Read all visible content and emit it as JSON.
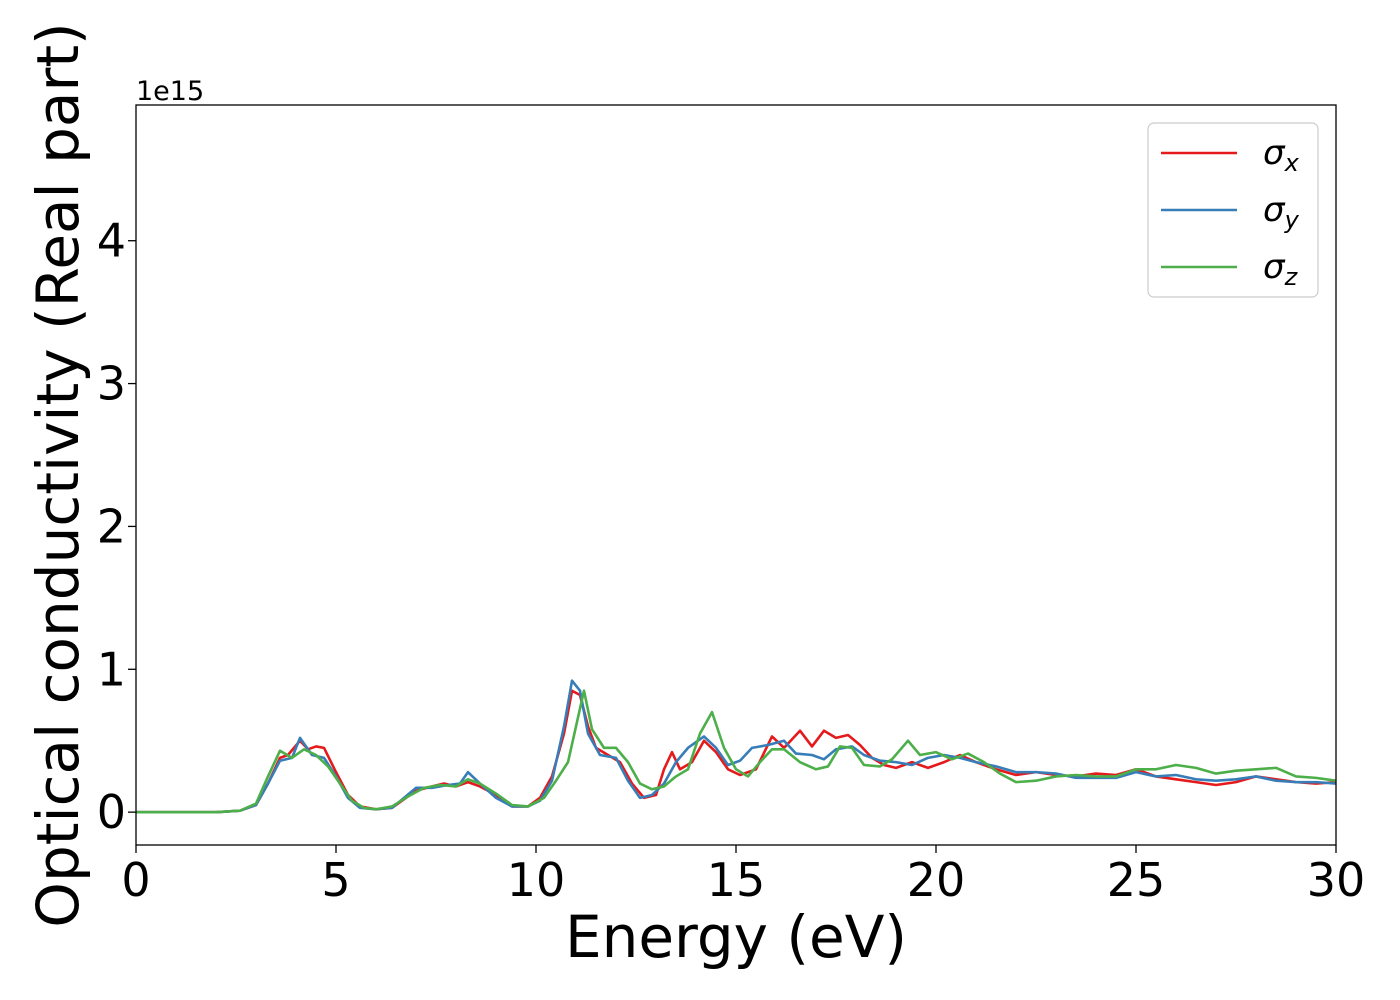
{
  "chart_data": {
    "type": "line",
    "xlabel": "Energy (eV)",
    "ylabel": "Optical conductivity (Real part)",
    "y_offset_label": "1e15",
    "xlim": [
      0,
      30
    ],
    "ylim": [
      -0.23,
      4.95
    ],
    "x_ticks": [
      0,
      5,
      10,
      15,
      20,
      25,
      30
    ],
    "y_ticks": [
      0,
      1,
      2,
      3,
      4
    ],
    "grid": false,
    "legend_position": "top-right",
    "series": [
      {
        "name": "σ_x",
        "legend_symbol": "σ",
        "legend_subscript": "x",
        "color": "#e41a1c",
        "points": [
          [
            0,
            0
          ],
          [
            2,
            0
          ],
          [
            2.6,
            0.01
          ],
          [
            3.0,
            0.05
          ],
          [
            3.3,
            0.2
          ],
          [
            3.6,
            0.38
          ],
          [
            3.8,
            0.4
          ],
          [
            4.1,
            0.5
          ],
          [
            4.3,
            0.44
          ],
          [
            4.5,
            0.46
          ],
          [
            4.7,
            0.45
          ],
          [
            5.0,
            0.28
          ],
          [
            5.3,
            0.12
          ],
          [
            5.6,
            0.04
          ],
          [
            6.0,
            0.02
          ],
          [
            6.4,
            0.03
          ],
          [
            6.7,
            0.09
          ],
          [
            7.0,
            0.15
          ],
          [
            7.4,
            0.18
          ],
          [
            7.7,
            0.2
          ],
          [
            8.0,
            0.18
          ],
          [
            8.3,
            0.21
          ],
          [
            8.6,
            0.18
          ],
          [
            9.0,
            0.12
          ],
          [
            9.4,
            0.04
          ],
          [
            9.8,
            0.04
          ],
          [
            10.1,
            0.1
          ],
          [
            10.4,
            0.25
          ],
          [
            10.7,
            0.55
          ],
          [
            10.9,
            0.85
          ],
          [
            11.1,
            0.82
          ],
          [
            11.3,
            0.6
          ],
          [
            11.5,
            0.45
          ],
          [
            11.8,
            0.4
          ],
          [
            12.1,
            0.35
          ],
          [
            12.4,
            0.2
          ],
          [
            12.7,
            0.1
          ],
          [
            13.0,
            0.12
          ],
          [
            13.2,
            0.3
          ],
          [
            13.4,
            0.42
          ],
          [
            13.6,
            0.3
          ],
          [
            13.9,
            0.35
          ],
          [
            14.2,
            0.5
          ],
          [
            14.5,
            0.42
          ],
          [
            14.8,
            0.3
          ],
          [
            15.1,
            0.26
          ],
          [
            15.5,
            0.3
          ],
          [
            15.9,
            0.53
          ],
          [
            16.2,
            0.45
          ],
          [
            16.6,
            0.57
          ],
          [
            16.9,
            0.46
          ],
          [
            17.2,
            0.57
          ],
          [
            17.5,
            0.52
          ],
          [
            17.8,
            0.54
          ],
          [
            18.1,
            0.47
          ],
          [
            18.4,
            0.38
          ],
          [
            18.7,
            0.33
          ],
          [
            19.0,
            0.31
          ],
          [
            19.4,
            0.35
          ],
          [
            19.8,
            0.31
          ],
          [
            20.2,
            0.35
          ],
          [
            20.6,
            0.4
          ],
          [
            21.0,
            0.35
          ],
          [
            21.5,
            0.3
          ],
          [
            22.0,
            0.26
          ],
          [
            22.5,
            0.28
          ],
          [
            23.0,
            0.26
          ],
          [
            23.5,
            0.25
          ],
          [
            24.0,
            0.27
          ],
          [
            24.5,
            0.26
          ],
          [
            25.0,
            0.3
          ],
          [
            25.5,
            0.25
          ],
          [
            26.0,
            0.23
          ],
          [
            26.5,
            0.21
          ],
          [
            27.0,
            0.19
          ],
          [
            27.5,
            0.21
          ],
          [
            28.0,
            0.25
          ],
          [
            28.5,
            0.23
          ],
          [
            29.0,
            0.21
          ],
          [
            29.5,
            0.2
          ],
          [
            30.0,
            0.21
          ]
        ]
      },
      {
        "name": "σ_y",
        "legend_symbol": "σ",
        "legend_subscript": "y",
        "color": "#377eb8",
        "points": [
          [
            0,
            0
          ],
          [
            2,
            0
          ],
          [
            2.6,
            0.01
          ],
          [
            3.0,
            0.05
          ],
          [
            3.3,
            0.2
          ],
          [
            3.6,
            0.36
          ],
          [
            3.9,
            0.38
          ],
          [
            4.1,
            0.52
          ],
          [
            4.4,
            0.4
          ],
          [
            4.7,
            0.38
          ],
          [
            5.0,
            0.25
          ],
          [
            5.3,
            0.1
          ],
          [
            5.6,
            0.03
          ],
          [
            6.0,
            0.02
          ],
          [
            6.4,
            0.03
          ],
          [
            6.7,
            0.1
          ],
          [
            7.0,
            0.17
          ],
          [
            7.4,
            0.17
          ],
          [
            7.8,
            0.19
          ],
          [
            8.1,
            0.2
          ],
          [
            8.3,
            0.28
          ],
          [
            8.6,
            0.2
          ],
          [
            9.0,
            0.1
          ],
          [
            9.4,
            0.04
          ],
          [
            9.8,
            0.04
          ],
          [
            10.1,
            0.08
          ],
          [
            10.4,
            0.22
          ],
          [
            10.7,
            0.6
          ],
          [
            10.9,
            0.92
          ],
          [
            11.1,
            0.85
          ],
          [
            11.3,
            0.55
          ],
          [
            11.6,
            0.4
          ],
          [
            12.0,
            0.38
          ],
          [
            12.3,
            0.22
          ],
          [
            12.6,
            0.1
          ],
          [
            12.9,
            0.12
          ],
          [
            13.2,
            0.2
          ],
          [
            13.5,
            0.35
          ],
          [
            13.8,
            0.45
          ],
          [
            14.2,
            0.53
          ],
          [
            14.5,
            0.45
          ],
          [
            14.8,
            0.33
          ],
          [
            15.1,
            0.36
          ],
          [
            15.4,
            0.45
          ],
          [
            15.8,
            0.47
          ],
          [
            16.2,
            0.5
          ],
          [
            16.5,
            0.41
          ],
          [
            16.9,
            0.4
          ],
          [
            17.2,
            0.37
          ],
          [
            17.5,
            0.44
          ],
          [
            17.9,
            0.46
          ],
          [
            18.2,
            0.4
          ],
          [
            18.6,
            0.36
          ],
          [
            19.0,
            0.35
          ],
          [
            19.4,
            0.33
          ],
          [
            19.8,
            0.38
          ],
          [
            20.2,
            0.4
          ],
          [
            20.6,
            0.38
          ],
          [
            21.0,
            0.35
          ],
          [
            21.5,
            0.32
          ],
          [
            22.0,
            0.28
          ],
          [
            22.5,
            0.28
          ],
          [
            23.0,
            0.27
          ],
          [
            23.5,
            0.24
          ],
          [
            24.0,
            0.24
          ],
          [
            24.5,
            0.24
          ],
          [
            25.0,
            0.28
          ],
          [
            25.5,
            0.25
          ],
          [
            26.0,
            0.26
          ],
          [
            26.5,
            0.23
          ],
          [
            27.0,
            0.22
          ],
          [
            27.5,
            0.23
          ],
          [
            28.0,
            0.25
          ],
          [
            28.5,
            0.22
          ],
          [
            29.0,
            0.21
          ],
          [
            29.5,
            0.21
          ],
          [
            30.0,
            0.2
          ]
        ]
      },
      {
        "name": "σ_z",
        "legend_symbol": "σ",
        "legend_subscript": "z",
        "color": "#4daf4a",
        "points": [
          [
            0,
            0
          ],
          [
            2,
            0
          ],
          [
            2.6,
            0.01
          ],
          [
            3.0,
            0.06
          ],
          [
            3.3,
            0.25
          ],
          [
            3.6,
            0.43
          ],
          [
            3.9,
            0.38
          ],
          [
            4.2,
            0.44
          ],
          [
            4.5,
            0.4
          ],
          [
            4.8,
            0.32
          ],
          [
            5.1,
            0.2
          ],
          [
            5.4,
            0.08
          ],
          [
            5.7,
            0.03
          ],
          [
            6.0,
            0.02
          ],
          [
            6.4,
            0.04
          ],
          [
            6.8,
            0.11
          ],
          [
            7.2,
            0.17
          ],
          [
            7.6,
            0.19
          ],
          [
            8.0,
            0.18
          ],
          [
            8.3,
            0.23
          ],
          [
            8.6,
            0.2
          ],
          [
            9.0,
            0.13
          ],
          [
            9.4,
            0.05
          ],
          [
            9.8,
            0.04
          ],
          [
            10.2,
            0.1
          ],
          [
            10.5,
            0.22
          ],
          [
            10.8,
            0.35
          ],
          [
            11.0,
            0.6
          ],
          [
            11.2,
            0.85
          ],
          [
            11.4,
            0.58
          ],
          [
            11.7,
            0.45
          ],
          [
            12.0,
            0.45
          ],
          [
            12.3,
            0.35
          ],
          [
            12.6,
            0.2
          ],
          [
            12.9,
            0.16
          ],
          [
            13.2,
            0.18
          ],
          [
            13.5,
            0.25
          ],
          [
            13.8,
            0.3
          ],
          [
            14.1,
            0.55
          ],
          [
            14.4,
            0.7
          ],
          [
            14.7,
            0.45
          ],
          [
            15.0,
            0.3
          ],
          [
            15.3,
            0.25
          ],
          [
            15.6,
            0.35
          ],
          [
            15.9,
            0.44
          ],
          [
            16.2,
            0.44
          ],
          [
            16.6,
            0.35
          ],
          [
            17.0,
            0.3
          ],
          [
            17.3,
            0.32
          ],
          [
            17.6,
            0.46
          ],
          [
            17.9,
            0.45
          ],
          [
            18.2,
            0.33
          ],
          [
            18.6,
            0.32
          ],
          [
            18.9,
            0.37
          ],
          [
            19.3,
            0.5
          ],
          [
            19.6,
            0.4
          ],
          [
            20.0,
            0.42
          ],
          [
            20.4,
            0.37
          ],
          [
            20.8,
            0.41
          ],
          [
            21.2,
            0.35
          ],
          [
            21.6,
            0.27
          ],
          [
            22.0,
            0.21
          ],
          [
            22.5,
            0.22
          ],
          [
            23.0,
            0.25
          ],
          [
            23.5,
            0.26
          ],
          [
            24.0,
            0.25
          ],
          [
            24.5,
            0.25
          ],
          [
            25.0,
            0.3
          ],
          [
            25.5,
            0.3
          ],
          [
            26.0,
            0.33
          ],
          [
            26.5,
            0.31
          ],
          [
            27.0,
            0.27
          ],
          [
            27.5,
            0.29
          ],
          [
            28.0,
            0.3
          ],
          [
            28.5,
            0.31
          ],
          [
            29.0,
            0.25
          ],
          [
            29.5,
            0.24
          ],
          [
            30.0,
            0.22
          ]
        ]
      }
    ]
  }
}
